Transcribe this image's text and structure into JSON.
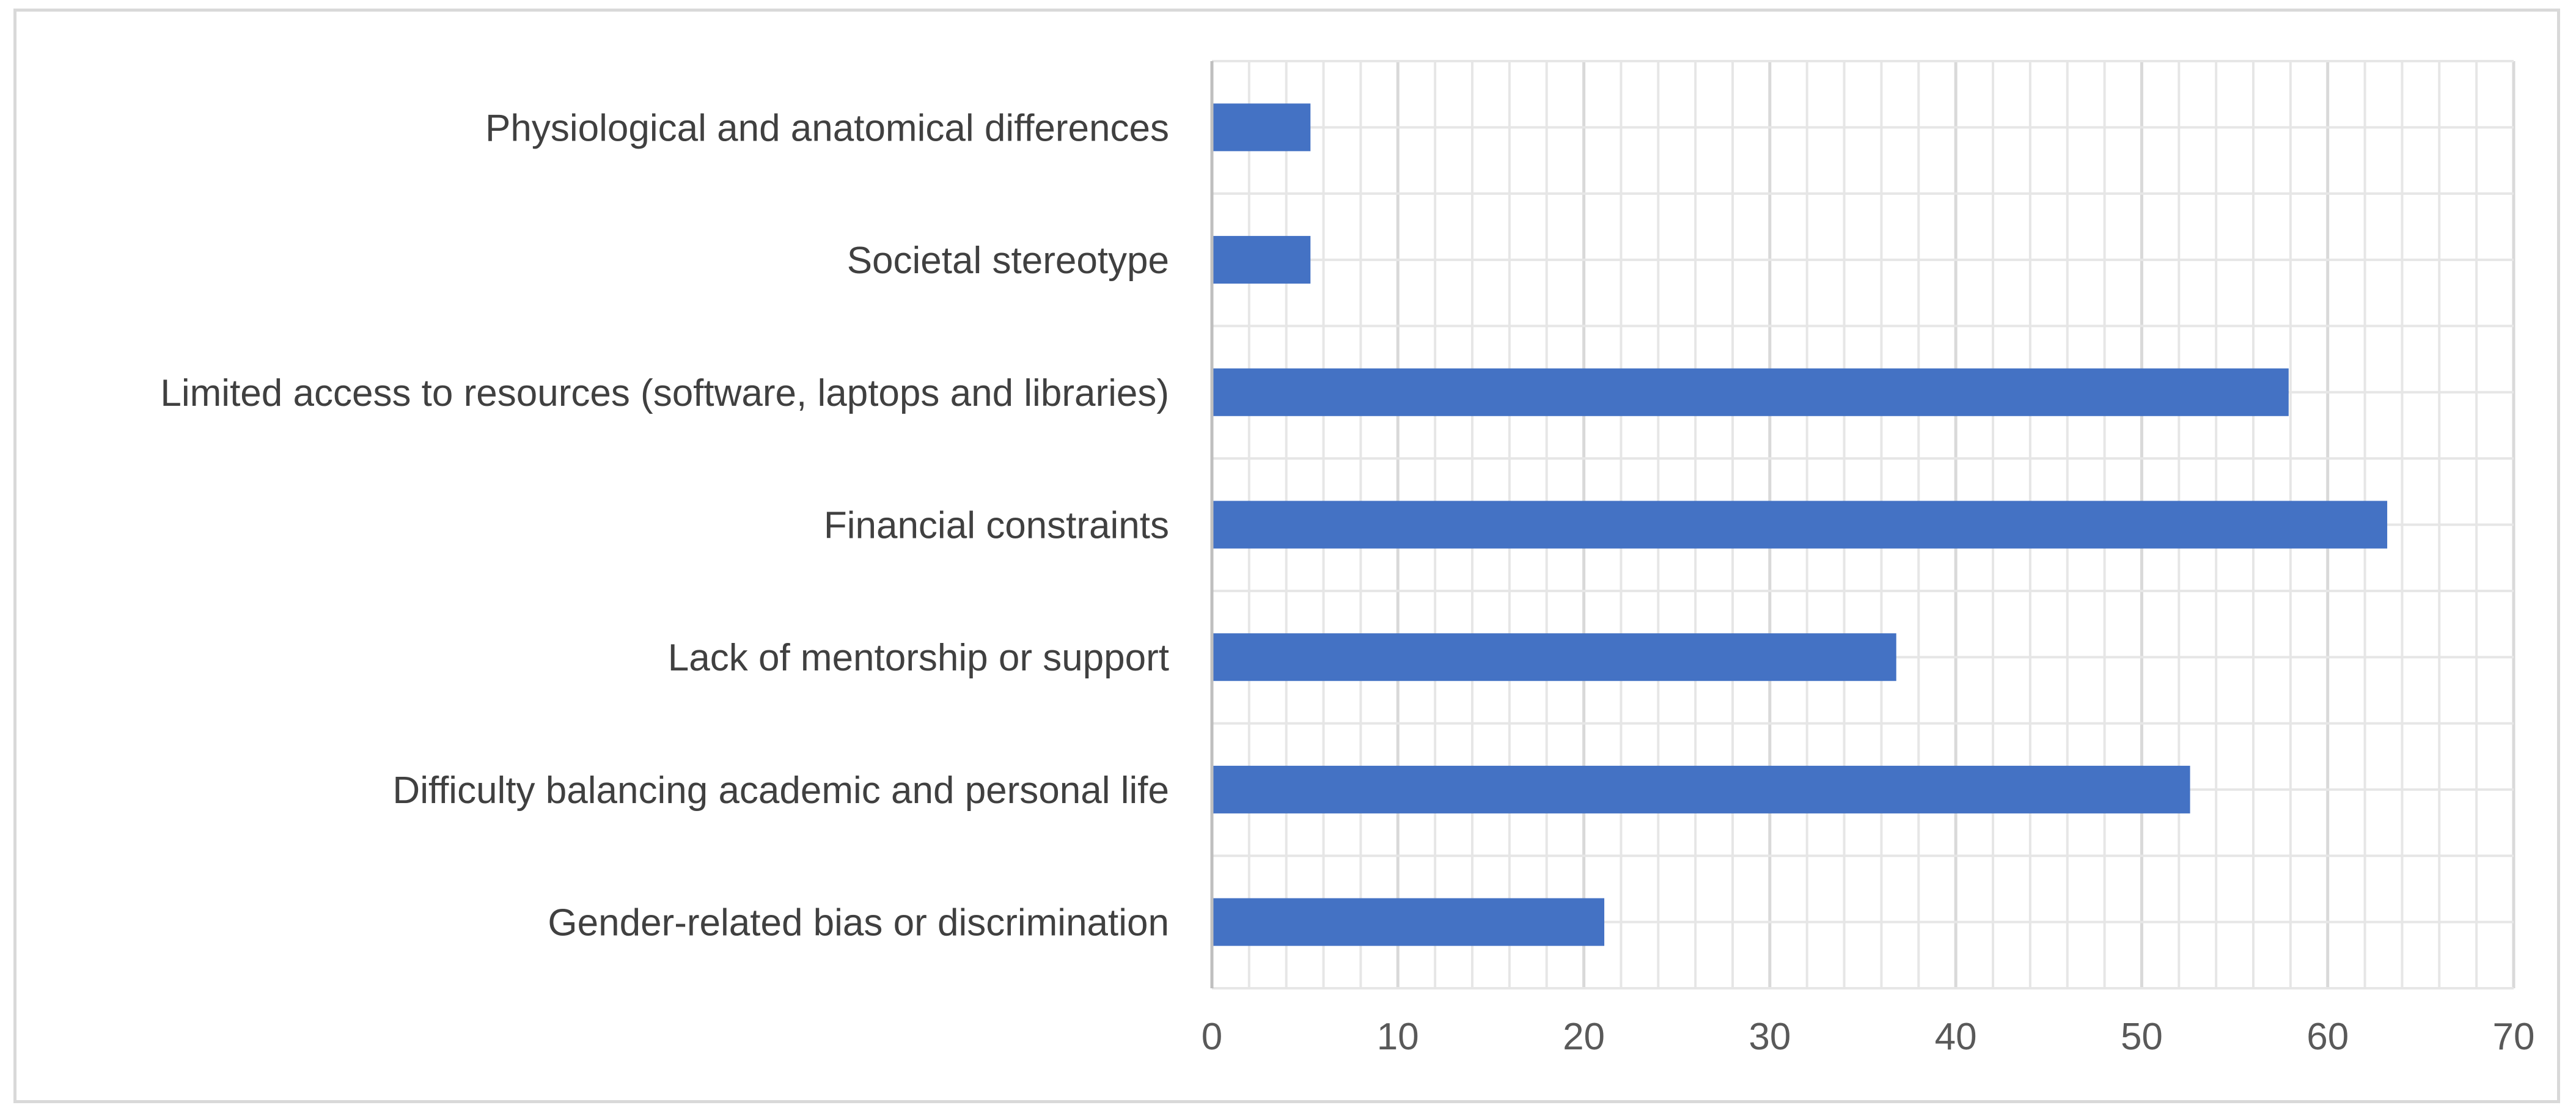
{
  "chart_data": {
    "type": "bar",
    "orientation": "horizontal",
    "title": "",
    "xlabel": "",
    "ylabel": "",
    "categories": [
      "Physiological and anatomical differences",
      "Societal stereotype",
      "Limited access to resources (software, laptops and libraries)",
      "Financial constraints",
      "Lack of mentorship or support",
      "Difficulty balancing academic and personal life",
      "Gender-related bias or discrimination"
    ],
    "values": [
      5.3,
      5.3,
      57.9,
      63.2,
      36.8,
      52.6,
      21.1
    ],
    "xlim": [
      0,
      70
    ],
    "xticks": [
      "0",
      "10",
      "20",
      "30",
      "40",
      "50",
      "60",
      "70"
    ],
    "major_grid_step": 10,
    "minor_grid_step": 2,
    "grid": true,
    "legend": "none",
    "bar_color": "#4472c4",
    "grid_color": "#e6e6e6",
    "frame_color": "#d9d9d9"
  }
}
